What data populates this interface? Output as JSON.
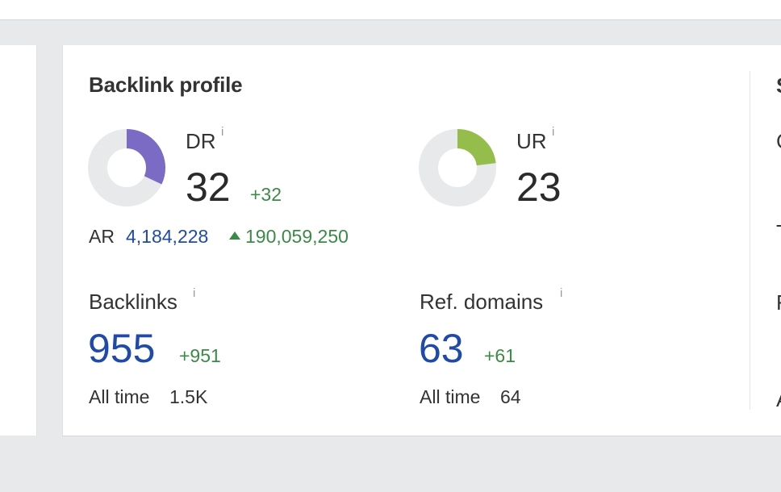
{
  "backlink_profile": {
    "title": "Backlink profile",
    "dr": {
      "label": "DR",
      "info": "i",
      "value": "32",
      "delta": "+32",
      "fill_fraction": 0.32,
      "color": "#7b6bc4"
    },
    "ur": {
      "label": "UR",
      "info": "i",
      "value": "23",
      "fill_fraction": 0.23,
      "color": "#94bd4b"
    },
    "ar": {
      "label": "AR",
      "value": "4,184,228",
      "delta": "190,059,250"
    },
    "backlinks": {
      "label": "Backlinks",
      "info": "i",
      "value": "955",
      "delta": "+951",
      "all_time_label": "All time",
      "all_time_value": "1.5K"
    },
    "ref_domains": {
      "label": "Ref. domains",
      "info": "i",
      "value": "63",
      "delta": "+61",
      "all_time_label": "All time",
      "all_time_value": "64"
    }
  },
  "right_panel_partial": {
    "title": "S",
    "row1": "C",
    "row2": "T",
    "row3": "F",
    "row4": "A"
  },
  "colors": {
    "blue_value": "#1f4aa8",
    "green_delta": "#3b8a46",
    "donut_track": "#e8e9eb"
  }
}
